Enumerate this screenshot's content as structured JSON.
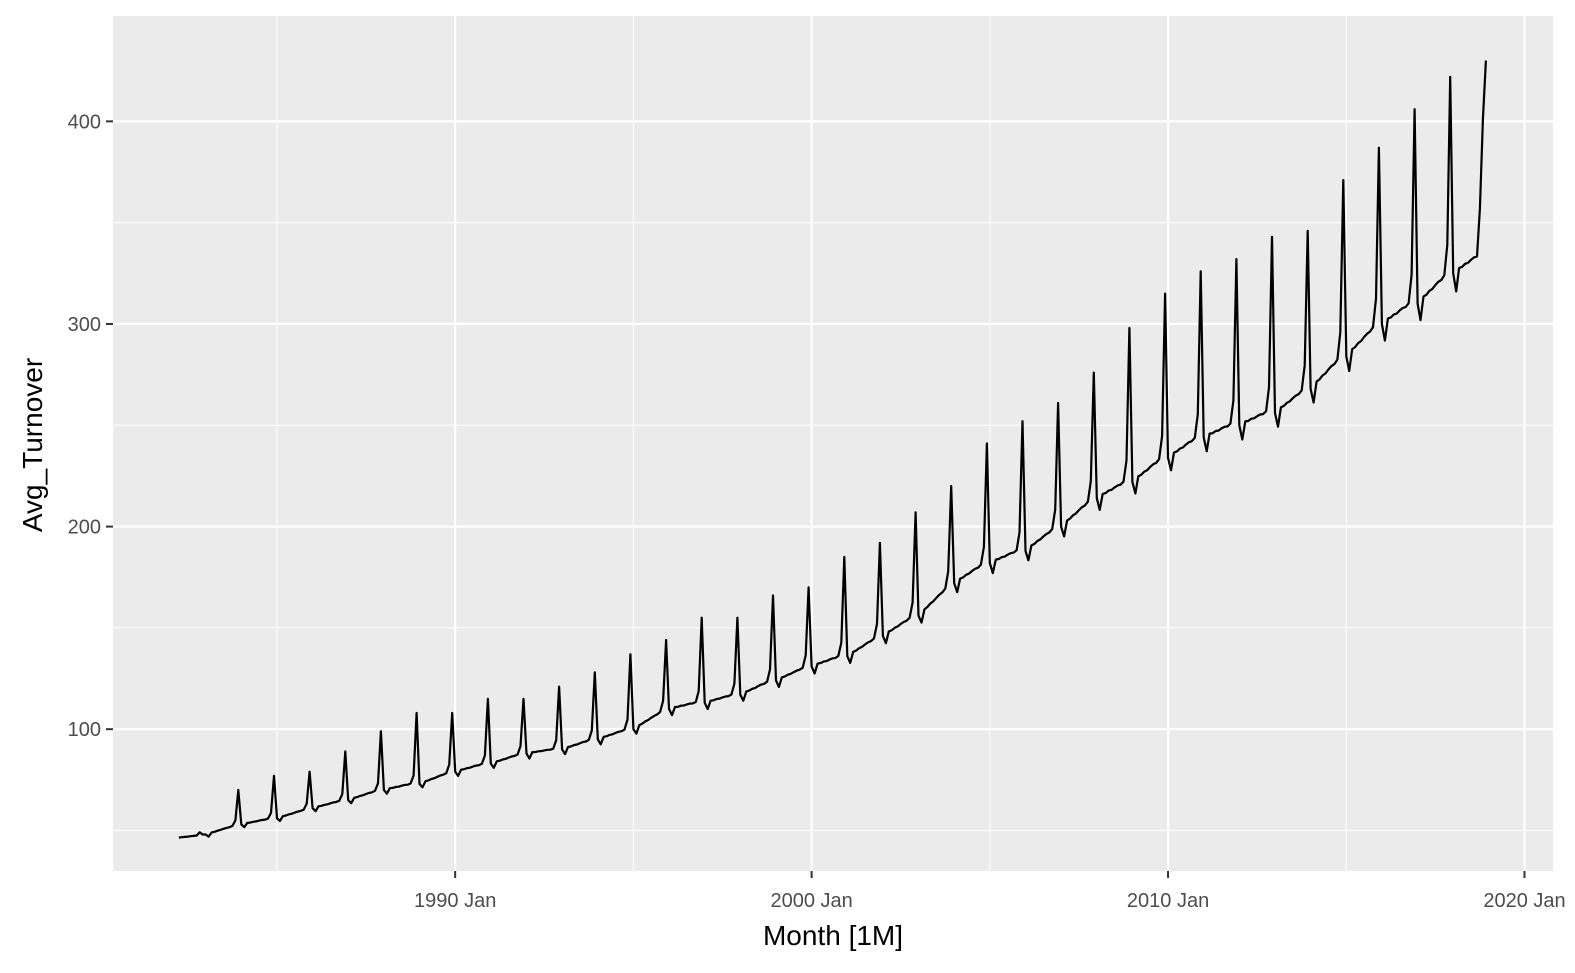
{
  "chart_data": {
    "type": "line",
    "title": "",
    "xlabel": "Month [1M]",
    "ylabel": "Avg_Turnover",
    "x_start": "1982 Apr",
    "x_end": "2018 Dec",
    "xlim": [
      1980.4,
      2020.8
    ],
    "ylim": [
      30,
      452
    ],
    "x_ticks": [
      {
        "value": 1990,
        "label": "1990 Jan"
      },
      {
        "value": 2000,
        "label": "2000 Jan"
      },
      {
        "value": 2010,
        "label": "2010 Jan"
      },
      {
        "value": 2020,
        "label": "2020 Jan"
      }
    ],
    "x_minor_ticks": [
      1985,
      1995,
      2005,
      2015
    ],
    "y_ticks": [
      {
        "value": 100,
        "label": "100"
      },
      {
        "value": 200,
        "label": "200"
      },
      {
        "value": 300,
        "label": "300"
      },
      {
        "value": 400,
        "label": "400"
      }
    ],
    "y_minor_ticks": [
      50,
      150,
      250,
      350
    ],
    "grid": true,
    "legend": "none",
    "series": [
      {
        "color": "#000000",
        "anchors": [
          {
            "year": 1982,
            "base": 46,
            "dec": 48
          },
          {
            "year": 1983,
            "base": 48,
            "dec": 70
          },
          {
            "year": 1984,
            "base": 53,
            "dec": 77
          },
          {
            "year": 1985,
            "base": 56,
            "dec": 79
          },
          {
            "year": 1986,
            "base": 61,
            "dec": 89
          },
          {
            "year": 1987,
            "base": 65,
            "dec": 99
          },
          {
            "year": 1988,
            "base": 70,
            "dec": 108
          },
          {
            "year": 1989,
            "base": 73,
            "dec": 108
          },
          {
            "year": 1990,
            "base": 79,
            "dec": 115
          },
          {
            "year": 1991,
            "base": 83,
            "dec": 115
          },
          {
            "year": 1992,
            "base": 88,
            "dec": 121
          },
          {
            "year": 1993,
            "base": 90,
            "dec": 128
          },
          {
            "year": 1994,
            "base": 95,
            "dec": 137
          },
          {
            "year": 1995,
            "base": 100,
            "dec": 144
          },
          {
            "year": 1996,
            "base": 110,
            "dec": 155
          },
          {
            "year": 1997,
            "base": 113,
            "dec": 155
          },
          {
            "year": 1998,
            "base": 117,
            "dec": 166
          },
          {
            "year": 1999,
            "base": 124,
            "dec": 170
          },
          {
            "year": 2000,
            "base": 131,
            "dec": 185
          },
          {
            "year": 2001,
            "base": 136,
            "dec": 192
          },
          {
            "year": 2002,
            "base": 146,
            "dec": 207
          },
          {
            "year": 2003,
            "base": 156,
            "dec": 220
          },
          {
            "year": 2004,
            "base": 172,
            "dec": 241
          },
          {
            "year": 2005,
            "base": 182,
            "dec": 252
          },
          {
            "year": 2006,
            "base": 188,
            "dec": 261
          },
          {
            "year": 2007,
            "base": 200,
            "dec": 276
          },
          {
            "year": 2008,
            "base": 214,
            "dec": 298
          },
          {
            "year": 2009,
            "base": 222,
            "dec": 315
          },
          {
            "year": 2010,
            "base": 234,
            "dec": 326
          },
          {
            "year": 2011,
            "base": 244,
            "dec": 332
          },
          {
            "year": 2012,
            "base": 250,
            "dec": 343
          },
          {
            "year": 2013,
            "base": 256,
            "dec": 346
          },
          {
            "year": 2014,
            "base": 268,
            "dec": 371
          },
          {
            "year": 2015,
            "base": 284,
            "dec": 387
          },
          {
            "year": 2016,
            "base": 300,
            "dec": 406
          },
          {
            "year": 2017,
            "base": 310,
            "dec": 422
          },
          {
            "year": 2018,
            "base": 325,
            "dec": 430
          },
          {
            "year": 2019,
            "base": 335,
            "dec": 439
          }
        ]
      }
    ]
  }
}
